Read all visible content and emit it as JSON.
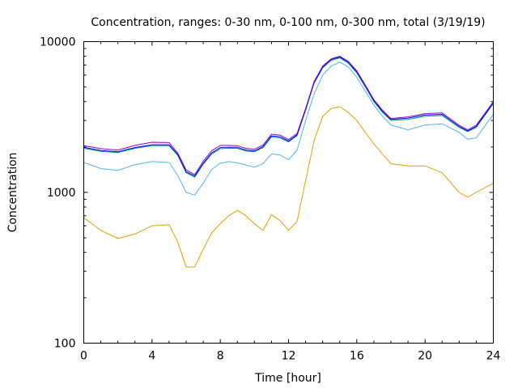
{
  "chart_data": {
    "type": "line",
    "title": "Concentration, ranges: 0-30 nm, 0-100 nm, 0-300 nm, total (3/19/19)",
    "xlabel": "Time [hour]",
    "ylabel": "Concentration",
    "xlim": [
      0,
      24
    ],
    "ylim": [
      100,
      10000
    ],
    "yscale": "log",
    "xticks": [
      0,
      4,
      8,
      12,
      16,
      20,
      24
    ],
    "xtick_labels": [
      "0",
      "4",
      "8",
      "12",
      "16",
      "20",
      "24"
    ],
    "yticks": [
      100,
      1000,
      10000
    ],
    "ytick_labels": [
      "100",
      "1000",
      "10000"
    ],
    "grid": false,
    "x": [
      0,
      1,
      2,
      3,
      4,
      5,
      5.5,
      6,
      6.5,
      7,
      7.5,
      8,
      8.5,
      9,
      9.5,
      10,
      10.5,
      11,
      11.5,
      12,
      12.5,
      13,
      13.5,
      14,
      14.5,
      15,
      15.5,
      16,
      16.5,
      17,
      17.5,
      18,
      19,
      20,
      21,
      22,
      22.5,
      23,
      24
    ],
    "series": [
      {
        "color": "#e69f00",
        "values": [
          680,
          560,
          495,
          530,
          600,
          610,
          470,
          320,
          320,
          420,
          540,
          620,
          700,
          760,
          700,
          620,
          560,
          710,
          650,
          560,
          640,
          1200,
          2200,
          3200,
          3600,
          3700,
          3400,
          3000,
          2500,
          2100,
          1800,
          1550,
          1500,
          1500,
          1350,
          1000,
          930,
          1000,
          1150
        ]
      },
      {
        "color": "#56b4e9",
        "values": [
          1580,
          1440,
          1400,
          1530,
          1600,
          1580,
          1300,
          1000,
          960,
          1150,
          1420,
          1560,
          1600,
          1570,
          1520,
          1470,
          1550,
          1800,
          1770,
          1650,
          1900,
          3000,
          4500,
          6000,
          6900,
          7300,
          6800,
          5800,
          4700,
          3800,
          3200,
          2800,
          2600,
          2800,
          2850,
          2500,
          2250,
          2300,
          3300
        ]
      },
      {
        "color": "#009e73",
        "values": [
          1960,
          1870,
          1840,
          1960,
          2040,
          2040,
          1760,
          1350,
          1260,
          1540,
          1800,
          1950,
          1960,
          1960,
          1880,
          1860,
          1980,
          2330,
          2300,
          2160,
          2380,
          3500,
          5300,
          6700,
          7500,
          7800,
          7200,
          6200,
          5000,
          4000,
          3400,
          3000,
          3050,
          3200,
          3230,
          2700,
          2530,
          2700,
          3880
        ]
      },
      {
        "color": "#0000ff",
        "values": [
          1990,
          1895,
          1860,
          1985,
          2070,
          2070,
          1790,
          1370,
          1285,
          1560,
          1830,
          1985,
          1995,
          1990,
          1910,
          1885,
          2010,
          2370,
          2340,
          2190,
          2410,
          3560,
          5380,
          6800,
          7620,
          7900,
          7300,
          6300,
          5080,
          4060,
          3460,
          3050,
          3110,
          3260,
          3290,
          2740,
          2560,
          2740,
          3930
        ]
      },
      {
        "color": "#9400d3",
        "values": [
          2040,
          1950,
          1910,
          2050,
          2150,
          2140,
          1830,
          1410,
          1310,
          1610,
          1890,
          2050,
          2050,
          2040,
          1960,
          1930,
          2060,
          2430,
          2400,
          2240,
          2460,
          3600,
          5450,
          6900,
          7700,
          8000,
          7400,
          6400,
          5150,
          4120,
          3510,
          3090,
          3170,
          3330,
          3360,
          2790,
          2600,
          2790,
          4000
        ]
      }
    ]
  }
}
